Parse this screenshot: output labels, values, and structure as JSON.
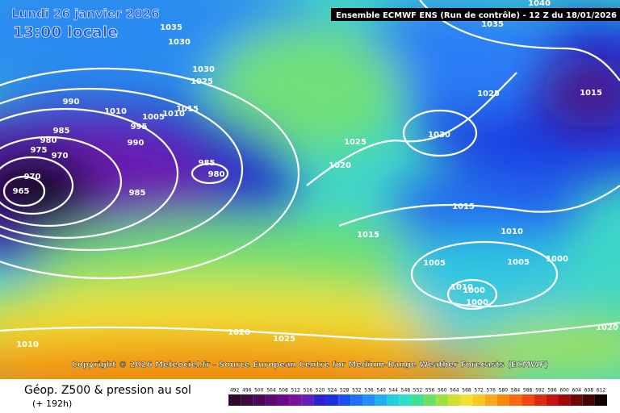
{
  "header": {
    "date": "Lundi 26 janvier 2026",
    "time": "13:00 locale",
    "run": "Ensemble ECMWF ENS  (Run de contrôle)  -  12 Z du 18/01/2026"
  },
  "copyright": "Copyright © 2026 Meteociel.fr - Source European Centre for Medium-Range Weather Forecasts (ECMWF)",
  "isobar_labels": [
    "990",
    "1010",
    "1015",
    "1010",
    "1005",
    "995",
    "985",
    "980",
    "975",
    "970",
    "990",
    "985",
    "980",
    "970",
    "965",
    "985",
    "1025",
    "1020",
    "1030",
    "1025",
    "1015",
    "1035",
    "1040",
    "1015",
    "1015",
    "1010",
    "1005",
    "1005",
    "1000",
    "1010",
    "1000",
    "1000",
    "1020",
    "1020",
    "1025",
    "1010",
    "1035",
    "1030",
    "1030",
    "1025"
  ],
  "footer": {
    "title": "Géop. Z500 & pression au sol",
    "lead": "(+ 192h)"
  },
  "legend": {
    "labels": [
      "492",
      "496",
      "500",
      "504",
      "508",
      "512",
      "516",
      "520",
      "524",
      "528",
      "532",
      "536",
      "540",
      "544",
      "548",
      "552",
      "556",
      "560",
      "564",
      "568",
      "572",
      "576",
      "580",
      "584",
      "588",
      "592",
      "596",
      "600",
      "604",
      "608",
      "612"
    ]
  }
}
